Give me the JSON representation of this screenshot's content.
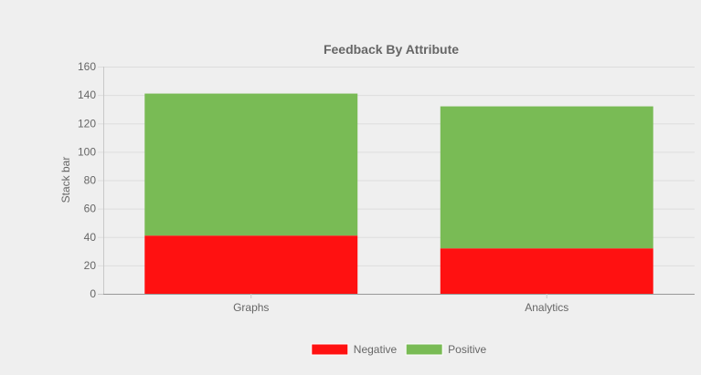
{
  "chart_data": {
    "type": "bar",
    "stacked": true,
    "title": "Feedback By Attribute",
    "xlabel": "",
    "ylabel": "Stack bar",
    "categories": [
      "Graphs",
      "Analytics"
    ],
    "series": [
      {
        "name": "Negative",
        "values": [
          41,
          32
        ],
        "color": "#ff1111"
      },
      {
        "name": "Positive",
        "values": [
          100,
          100
        ],
        "color": "#79bb55"
      }
    ],
    "ylim": [
      0,
      160
    ],
    "yticks": [
      "0",
      "20",
      "40",
      "60",
      "80",
      "100",
      "120",
      "140",
      "160"
    ],
    "grid": true,
    "legend_position": "bottom"
  }
}
